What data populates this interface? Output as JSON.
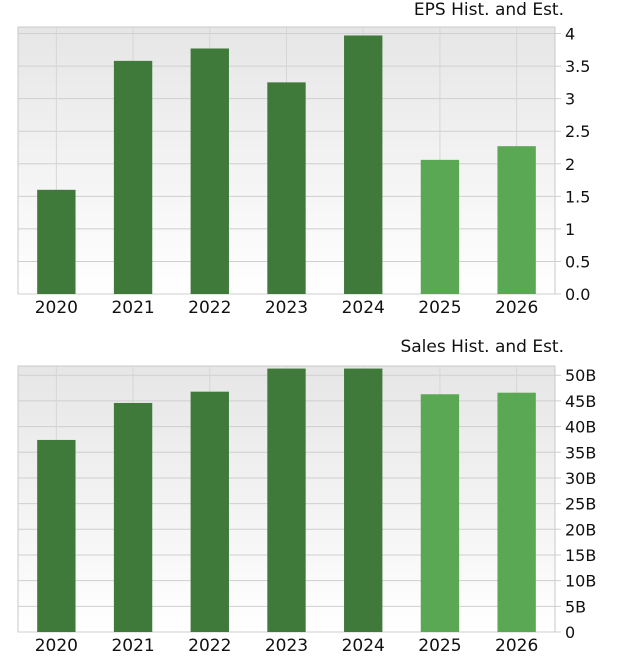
{
  "chart_data": [
    {
      "type": "bar",
      "title": "EPS Hist. and Est.",
      "categories": [
        "2020",
        "2021",
        "2022",
        "2023",
        "2024",
        "2025",
        "2026"
      ],
      "values": [
        1.6,
        3.58,
        3.77,
        3.25,
        3.97,
        2.06,
        2.27
      ],
      "historical_count": 5,
      "ylim": [
        0,
        4.1
      ],
      "yticks": [
        0,
        0.5,
        1,
        1.5,
        2,
        2.5,
        3,
        3.5,
        4
      ],
      "ytick_labels": [
        "0.0",
        "0.5",
        "1",
        "1.5",
        "2",
        "2.5",
        "3",
        "3.5",
        "4"
      ],
      "grid": true,
      "colors": {
        "historical": "#3f7a3a",
        "estimate": "#5aa854"
      }
    },
    {
      "type": "bar",
      "title": "Sales Hist. and Est.",
      "categories": [
        "2020",
        "2021",
        "2022",
        "2023",
        "2024",
        "2025",
        "2026"
      ],
      "values": [
        37.4,
        44.6,
        46.8,
        51.3,
        51.3,
        46.3,
        46.6
      ],
      "historical_count": 5,
      "ylim": [
        0,
        51.8
      ],
      "yticks": [
        0,
        5,
        10,
        15,
        20,
        25,
        30,
        35,
        40,
        45,
        50
      ],
      "ytick_labels": [
        "0",
        "5B",
        "10B",
        "15B",
        "20B",
        "25B",
        "30B",
        "35B",
        "40B",
        "45B",
        "50B"
      ],
      "grid": true,
      "colors": {
        "historical": "#3f7a3a",
        "estimate": "#5aa854"
      }
    }
  ]
}
